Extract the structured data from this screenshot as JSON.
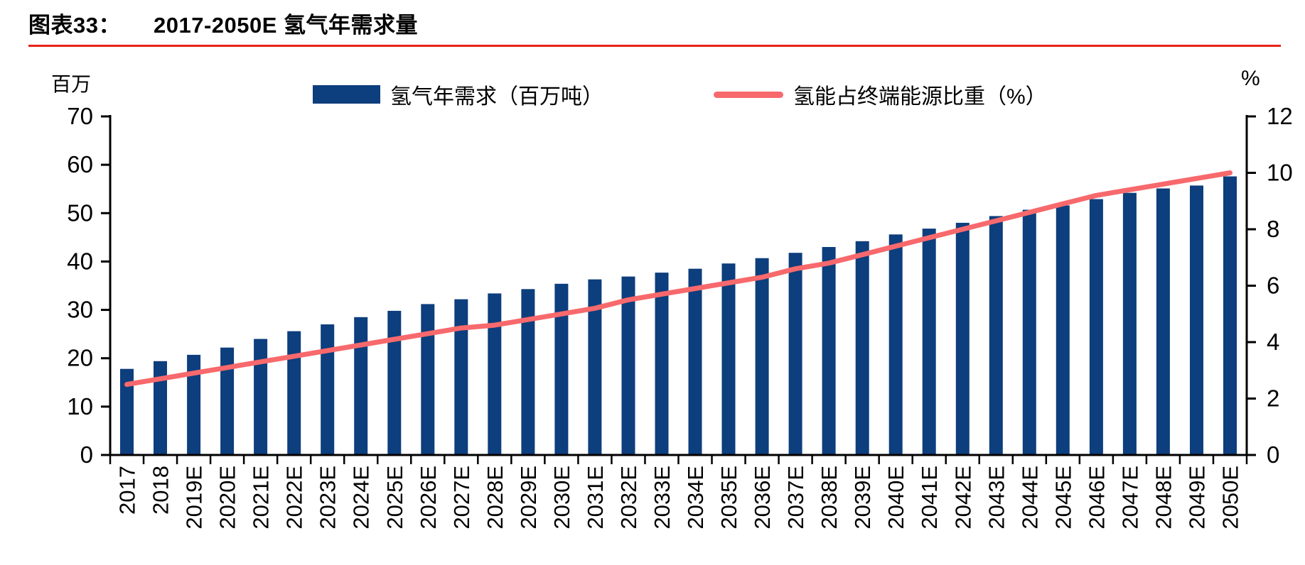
{
  "title": {
    "figure_label": "图表33：",
    "figure_title": "2017-2050E 氢气年需求量"
  },
  "colors": {
    "bar": "#0d3e7d",
    "line": "#f7696c",
    "title_rule": "#e8211a",
    "axis": "#000000"
  },
  "legend": {
    "bar_label": "氢气年需求（百万吨）",
    "line_label": "氢能占终端能源比重（%）"
  },
  "chart_data": {
    "type": "bar",
    "subtype": "bar+line dual axis",
    "title": "2017-2050E 氢气年需求量",
    "categories": [
      "2017",
      "2018",
      "2019E",
      "2020E",
      "2021E",
      "2022E",
      "2023E",
      "2024E",
      "2025E",
      "2026E",
      "2027E",
      "2028E",
      "2029E",
      "2030E",
      "2031E",
      "2032E",
      "2033E",
      "2034E",
      "2035E",
      "2036E",
      "2037E",
      "2038E",
      "2039E",
      "2040E",
      "2041E",
      "2042E",
      "2043E",
      "2044E",
      "2045E",
      "2046E",
      "2047E",
      "2048E",
      "2049E",
      "2050E"
    ],
    "series": [
      {
        "name": "氢气年需求（百万吨）",
        "type": "bar",
        "axis": "left",
        "color": "#0d3e7d",
        "values": [
          17.8,
          19.4,
          20.7,
          22.2,
          24.0,
          25.6,
          27.0,
          28.5,
          29.8,
          31.2,
          32.2,
          33.4,
          34.3,
          35.4,
          36.3,
          36.9,
          37.7,
          38.5,
          39.6,
          40.7,
          41.8,
          43.0,
          44.2,
          45.6,
          46.8,
          48.0,
          49.4,
          50.7,
          51.6,
          52.9,
          54.2,
          55.1,
          55.7,
          57.6
        ]
      },
      {
        "name": "氢能占终端能源比重（%）",
        "type": "line",
        "axis": "right",
        "color": "#f7696c",
        "values": [
          2.5,
          2.7,
          2.9,
          3.1,
          3.3,
          3.5,
          3.7,
          3.9,
          4.1,
          4.3,
          4.5,
          4.6,
          4.8,
          5.0,
          5.2,
          5.5,
          5.7,
          5.9,
          6.1,
          6.3,
          6.6,
          6.8,
          7.1,
          7.4,
          7.7,
          8.0,
          8.3,
          8.6,
          8.9,
          9.2,
          9.4,
          9.6,
          9.8,
          10.0
        ]
      }
    ],
    "left_axis": {
      "label": "百万",
      "min": 0,
      "max": 70,
      "ticks": [
        0,
        10,
        20,
        30,
        40,
        50,
        60,
        70
      ]
    },
    "right_axis": {
      "label": "%",
      "min": 0,
      "max": 12,
      "ticks": [
        0,
        2,
        4,
        6,
        8,
        10,
        12
      ]
    },
    "grid": false,
    "legend_position": "top"
  }
}
